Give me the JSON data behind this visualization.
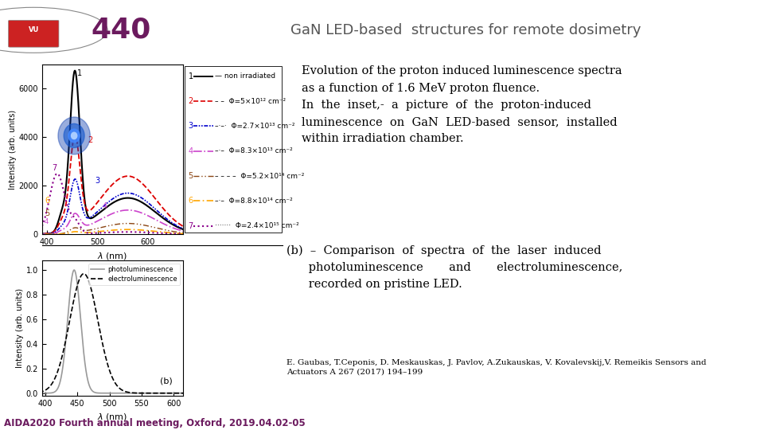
{
  "title": "GaN LED-based  structures for remote dosimetry",
  "title_fontsize": 13,
  "title_color": "#555555",
  "bg_color": "#ffffff",
  "logo_color": "#6b1a5e",
  "footer_text": "AIDA2020 Fourth annual meeting, Oxford, 2019.04.02-05",
  "footer_color": "#6b1a5e",
  "footer_bar_color": "#6b1a5e",
  "text1_line1": "Evolution of the proton induced luminescence spectra",
  "text1_line2": "as a function of 1.6 MeV proton fluence.",
  "text1_line3": "In  the  inset,-  a  picture  of  the  proton-induced",
  "text1_line4": "luminescence  on  GaN  LED-based  sensor,  installed",
  "text1_line5": "within irradiation chamber.",
  "text2_line1": "(b)  –  Comparison  of  spectra  of  the  laser  induced",
  "text2_line2": "      photoluminescence       and       electroluminescence,",
  "text2_line3": "      recorded on pristine LED.",
  "ref_text": "E. Gaubas, T.Ceponis, D. Meskauskas, J. Pavlov, A.Zukauskas, V. Kovalevskij,V. Remeikis Sensors and\nActuators A 267 (2017) 194–199",
  "legend1": [
    {
      "label": "1 —  non irradiated",
      "color": "#000000",
      "ls": "solid",
      "lw": 1.5
    },
    {
      "label": "2 – –  Φ=5×10¹² cm⁻²",
      "color": "#dd0000",
      "ls": "dashed",
      "lw": 1.3
    },
    {
      "label": "3 –·–·  Φ=2.7×10¹³ cm⁻²",
      "color": "#0000cc",
      "ls": "dashdot",
      "lw": 1.3
    },
    {
      "label": "4 –·–  Φ=8.3×10¹³ cm⁻²",
      "color": "#cc44cc",
      "ls": "dashdot",
      "lw": 1.3
    },
    {
      "label": "5 – – –  Φ=5.2×10¹⁴ cm⁻²",
      "color": "#8B4513",
      "ls": "dashed",
      "lw": 1.0
    },
    {
      "label": "6 –·–  Φ=8.8×10¹⁴ cm⁻²",
      "color": "#FFA500",
      "ls": "dashdot",
      "lw": 1.3
    },
    {
      "label": "7 ······  Φ=2.4×10¹⁵ cm⁻²",
      "color": "#8B008B",
      "ls": "dotted",
      "lw": 1.5
    }
  ]
}
